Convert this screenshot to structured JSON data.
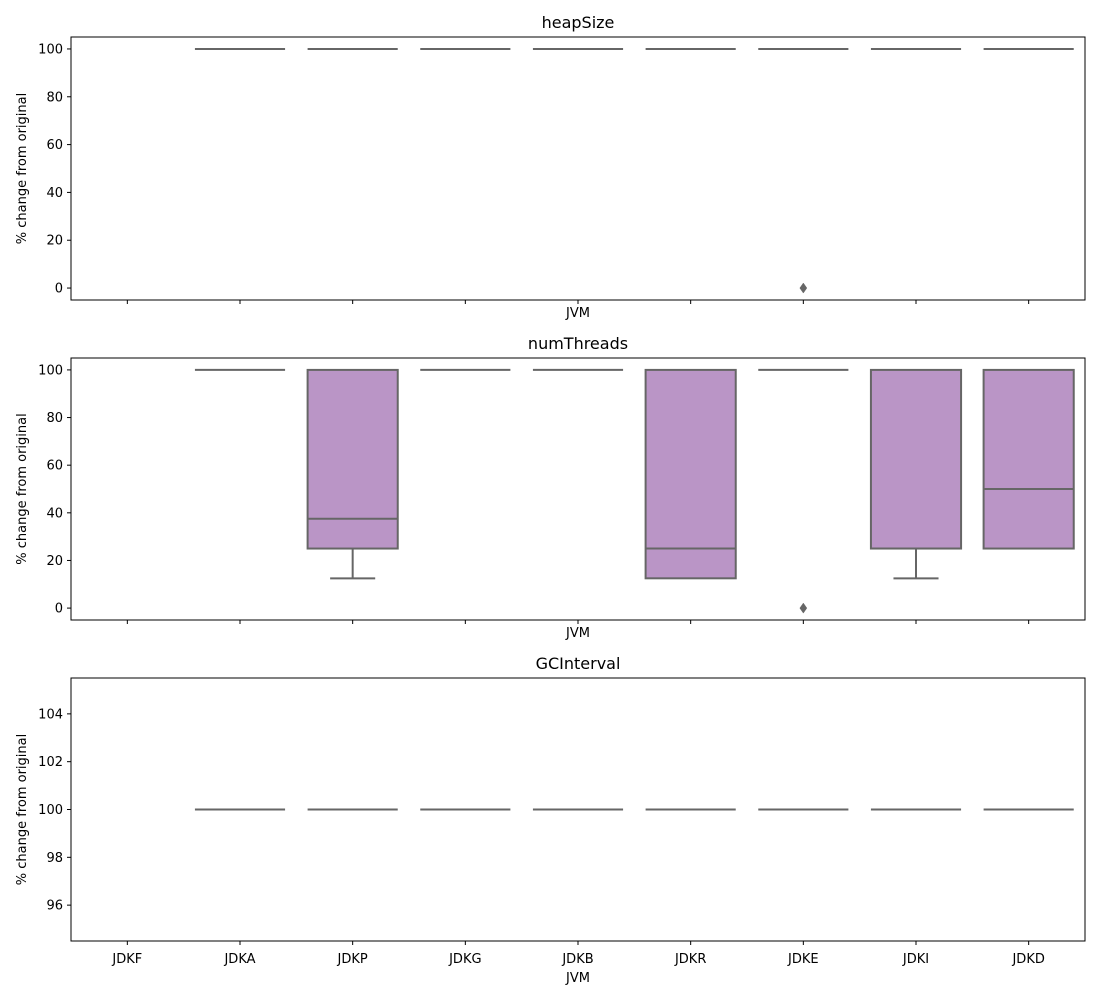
{
  "chart_data": [
    {
      "type": "box",
      "title": "heapSize",
      "xlabel": "JVM",
      "ylabel": "% change from original",
      "ylim": [
        -5,
        105
      ],
      "yticks": [
        0,
        20,
        40,
        60,
        80,
        100
      ],
      "show_xticklabels": false,
      "categories": [
        "JDKF",
        "JDKA",
        "JDKP",
        "JDKG",
        "JDKB",
        "JDKR",
        "JDKE",
        "JDKI",
        "JDKD"
      ],
      "boxes": [
        null,
        {
          "q1": 100,
          "median": 100,
          "q3": 100,
          "whislo": 100,
          "whishi": 100,
          "fliers": []
        },
        {
          "q1": 100,
          "median": 100,
          "q3": 100,
          "whislo": 100,
          "whishi": 100,
          "fliers": []
        },
        {
          "q1": 100,
          "median": 100,
          "q3": 100,
          "whislo": 100,
          "whishi": 100,
          "fliers": []
        },
        {
          "q1": 100,
          "median": 100,
          "q3": 100,
          "whislo": 100,
          "whishi": 100,
          "fliers": []
        },
        {
          "q1": 100,
          "median": 100,
          "q3": 100,
          "whislo": 100,
          "whishi": 100,
          "fliers": []
        },
        {
          "q1": 100,
          "median": 100,
          "q3": 100,
          "whislo": 100,
          "whishi": 100,
          "fliers": [
            0
          ]
        },
        {
          "q1": 100,
          "median": 100,
          "q3": 100,
          "whislo": 100,
          "whishi": 100,
          "fliers": []
        },
        {
          "q1": 100,
          "median": 100,
          "q3": 100,
          "whislo": 100,
          "whishi": 100,
          "fliers": []
        }
      ]
    },
    {
      "type": "box",
      "title": "numThreads",
      "xlabel": "JVM",
      "ylabel": "% change from original",
      "ylim": [
        -5,
        105
      ],
      "yticks": [
        0,
        20,
        40,
        60,
        80,
        100
      ],
      "show_xticklabels": false,
      "categories": [
        "JDKF",
        "JDKA",
        "JDKP",
        "JDKG",
        "JDKB",
        "JDKR",
        "JDKE",
        "JDKI",
        "JDKD"
      ],
      "boxes": [
        null,
        {
          "q1": 100,
          "median": 100,
          "q3": 100,
          "whislo": 100,
          "whishi": 100,
          "fliers": []
        },
        {
          "q1": 25,
          "median": 37.5,
          "q3": 100,
          "whislo": 12.5,
          "whishi": 100,
          "fliers": []
        },
        {
          "q1": 100,
          "median": 100,
          "q3": 100,
          "whislo": 100,
          "whishi": 100,
          "fliers": []
        },
        {
          "q1": 100,
          "median": 100,
          "q3": 100,
          "whislo": 100,
          "whishi": 100,
          "fliers": []
        },
        {
          "q1": 12.5,
          "median": 25,
          "q3": 100,
          "whislo": 12.5,
          "whishi": 100,
          "fliers": []
        },
        {
          "q1": 100,
          "median": 100,
          "q3": 100,
          "whislo": 100,
          "whishi": 100,
          "fliers": [
            0
          ]
        },
        {
          "q1": 25,
          "median": 25,
          "q3": 100,
          "whislo": 12.5,
          "whishi": 100,
          "fliers": []
        },
        {
          "q1": 25,
          "median": 50,
          "q3": 100,
          "whislo": 25,
          "whishi": 100,
          "fliers": []
        }
      ]
    },
    {
      "type": "box",
      "title": "GCInterval",
      "xlabel": "JVM",
      "ylabel": "% change from original",
      "ylim": [
        94.5,
        105.5
      ],
      "yticks": [
        96,
        98,
        100,
        102,
        104
      ],
      "show_xticklabels": true,
      "categories": [
        "JDKF",
        "JDKA",
        "JDKP",
        "JDKG",
        "JDKB",
        "JDKR",
        "JDKE",
        "JDKI",
        "JDKD"
      ],
      "boxes": [
        null,
        {
          "q1": 100,
          "median": 100,
          "q3": 100,
          "whislo": 100,
          "whishi": 100,
          "fliers": []
        },
        {
          "q1": 100,
          "median": 100,
          "q3": 100,
          "whislo": 100,
          "whishi": 100,
          "fliers": []
        },
        {
          "q1": 100,
          "median": 100,
          "q3": 100,
          "whislo": 100,
          "whishi": 100,
          "fliers": []
        },
        {
          "q1": 100,
          "median": 100,
          "q3": 100,
          "whislo": 100,
          "whishi": 100,
          "fliers": []
        },
        {
          "q1": 100,
          "median": 100,
          "q3": 100,
          "whislo": 100,
          "whishi": 100,
          "fliers": []
        },
        {
          "q1": 100,
          "median": 100,
          "q3": 100,
          "whislo": 100,
          "whishi": 100,
          "fliers": []
        },
        {
          "q1": 100,
          "median": 100,
          "q3": 100,
          "whislo": 100,
          "whishi": 100,
          "fliers": []
        },
        {
          "q1": 100,
          "median": 100,
          "q3": 100,
          "whislo": 100,
          "whishi": 100,
          "fliers": []
        }
      ]
    }
  ],
  "colors": {
    "box_fill": "#ba95c6",
    "box_edge": "#666666",
    "median_line": "#666666",
    "axis": "#000000"
  }
}
